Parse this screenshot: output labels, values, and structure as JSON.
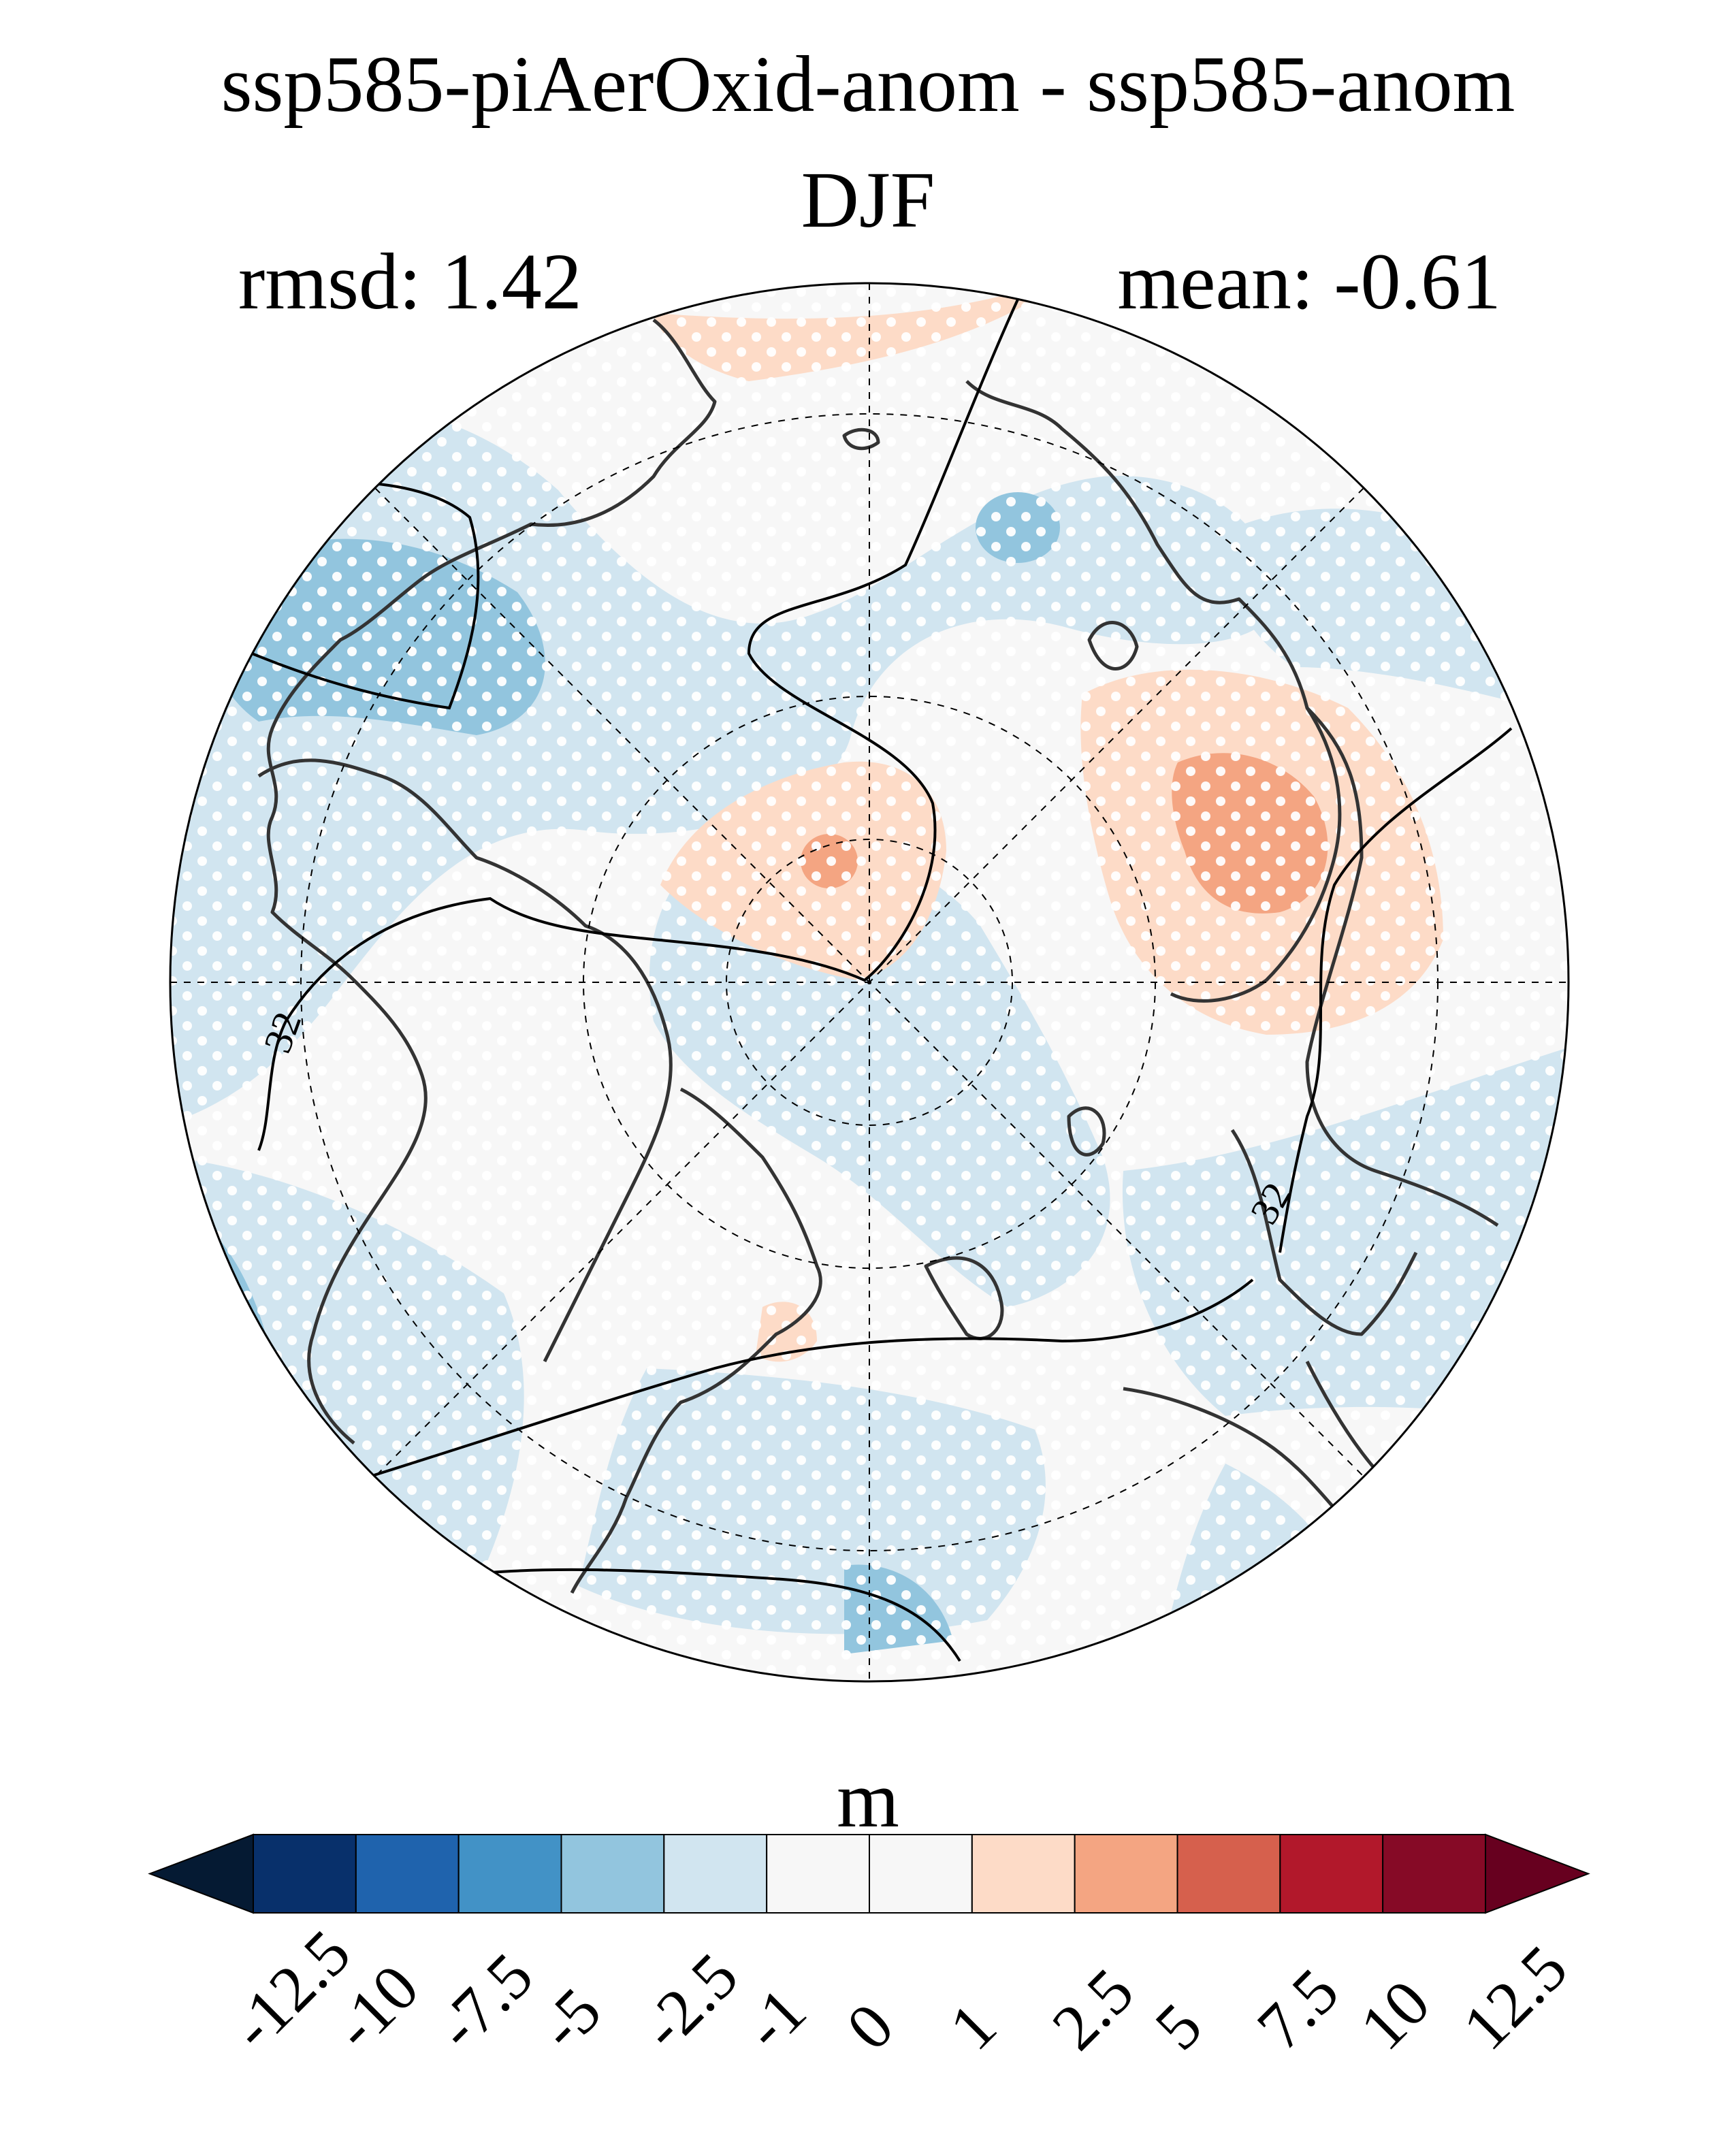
{
  "title": {
    "line1": "ssp585-piAerOxid-anom - ssp585-anom",
    "line2": "DJF"
  },
  "stats": {
    "rmsd": "rmsd: 1.42",
    "mean": "mean: -0.61"
  },
  "map": {
    "projection": "north-polar-stereographic",
    "contour_labels": [
      "32",
      "32"
    ],
    "stippling": "white dots over significant regions",
    "colors": {
      "land_outline": "#333333",
      "graticule": "#000000"
    }
  },
  "colorbar": {
    "units": "m",
    "tick_labels": [
      "-12.5",
      "-10",
      "-7.5",
      "-5",
      "-2.5",
      "-1",
      "0",
      "1",
      "2.5",
      "5",
      "7.5",
      "10",
      "12.5"
    ],
    "colors": [
      "#08306b",
      "#1f63ad",
      "#4292c6",
      "#92c5de",
      "#d1e5f0",
      "#f7f7f7",
      "#f7f7f7",
      "#fddbc7",
      "#f4a582",
      "#d6604d",
      "#b2182b",
      "#860a26"
    ],
    "extend_low_color": "#051a33",
    "extend_high_color": "#67001f"
  }
}
